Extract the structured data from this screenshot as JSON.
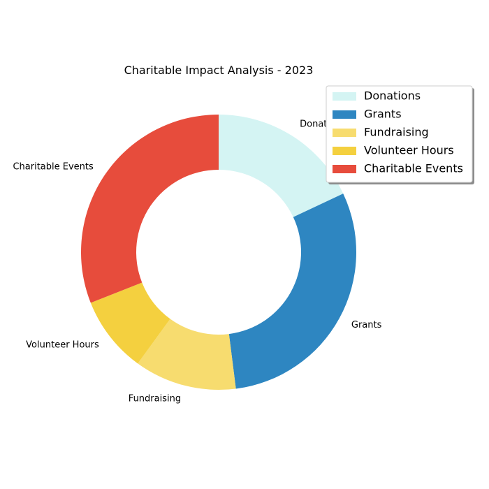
{
  "chart_data": {
    "type": "pie",
    "title": "Charitable Impact Analysis - 2023",
    "donut": true,
    "legend_position": "top-right",
    "slices": [
      {
        "label": "Donations",
        "value": 18,
        "color": "#d4f4f3"
      },
      {
        "label": "Grants",
        "value": 30,
        "color": "#2e86c1"
      },
      {
        "label": "Fundraising",
        "value": 12,
        "color": "#f7dc6f"
      },
      {
        "label": "Volunteer Hours",
        "value": 9,
        "color": "#f4d03f"
      },
      {
        "label": "Charitable Events",
        "value": 31,
        "color": "#e74c3c"
      }
    ]
  }
}
